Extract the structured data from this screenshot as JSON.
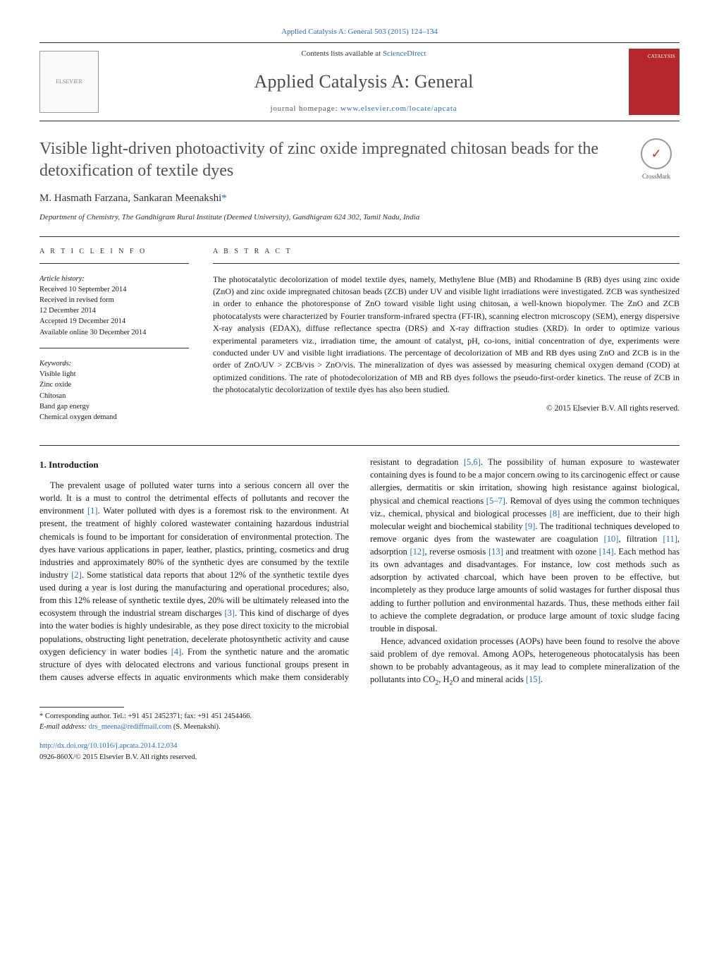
{
  "journal_ref": "Applied Catalysis A: General 503 (2015) 124–134",
  "header": {
    "contents_prefix": "Contents lists available at ",
    "contents_link": "ScienceDirect",
    "journal_title": "Applied Catalysis A: General",
    "homepage_prefix": "journal homepage: ",
    "homepage_link": "www.elsevier.com/locate/apcata",
    "elsevier_alt": "ELSEVIER",
    "cover_alt": "CATALYSIS"
  },
  "crossmark_label": "CrossMark",
  "title": "Visible light-driven photoactivity of zinc oxide impregnated chitosan beads for the detoxification of textile dyes",
  "authors_html": "M. Hasmath Farzana, Sankaran Meenakshi",
  "corr_marker": "*",
  "affiliation": "Department of Chemistry, The Gandhigram Rural Institute (Deemed University), Gandhigram 624 302, Tamil Nadu, India",
  "article_info": {
    "heading": "A R T I C L E   I N F O",
    "history_label": "Article history:",
    "history": [
      "Received 10 September 2014",
      "Received in revised form",
      "12 December 2014",
      "Accepted 19 December 2014",
      "Available online 30 December 2014"
    ],
    "keywords_label": "Keywords:",
    "keywords": [
      "Visible light",
      "Zinc oxide",
      "Chitosan",
      "Band gap energy",
      "Chemical oxygen demand"
    ]
  },
  "abstract": {
    "heading": "A B S T R A C T",
    "text": "The photocatalytic decolorization of model textile dyes, namely, Methylene Blue (MB) and Rhodamine B (RB) dyes using zinc oxide (ZnO) and zinc oxide impregnated chitosan beads (ZCB) under UV and visible light irradiations were investigated. ZCB was synthesized in order to enhance the photoresponse of ZnO toward visible light using chitosan, a well-known biopolymer. The ZnO and ZCB photocatalysts were characterized by Fourier transform-infrared spectra (FT-IR), scanning electron microscopy (SEM), energy dispersive X-ray analysis (EDAX), diffuse reflectance spectra (DRS) and X-ray diffraction studies (XRD). In order to optimize various experimental parameters viz., irradiation time, the amount of catalyst, pH, co-ions, initial concentration of dye, experiments were conducted under UV and visible light irradiations. The percentage of decolorization of MB and RB dyes using ZnO and ZCB is in the order of ZnO/UV > ZCB/vis > ZnO/vis. The mineralization of dyes was assessed by measuring chemical oxygen demand (COD) at optimized conditions. The rate of photodecolorization of MB and RB dyes follows the pseudo-first-order kinetics. The reuse of ZCB in the photocatalytic decolorization of textile dyes has also been studied.",
    "copyright": "© 2015 Elsevier B.V. All rights reserved."
  },
  "body": {
    "section_number": "1.",
    "section_title": "Introduction",
    "p1a": "The prevalent usage of polluted water turns into a serious concern all over the world. It is a must to control the detrimental effects of pollutants and recover the environment ",
    "c1": "[1]",
    "p1b": ". Water polluted with dyes is a foremost risk to the environment. At present, the treatment of highly colored wastewater containing hazardous industrial chemicals is found to be important for consideration of environmental protection. The dyes have various applications in paper, leather, plastics, printing, cosmetics and drug industries and approximately 80% of the synthetic dyes are consumed by the textile industry ",
    "c2": "[2]",
    "p1c": ". Some statistical data reports that about 12% of the synthetic textile dyes used during a year is lost during the manufacturing and operational procedures; also, from this 12% release of synthetic textile dyes, 20% will be ultimately released into the ecosystem through the industrial stream discharges ",
    "c3": "[3]",
    "p1d": ". This kind of discharge of dyes into the water bodies is highly undesirable, as they pose direct toxicity to the microbial populations, obstructing light penetration, decelerate photosynthetic activity and cause oxygen deficiency in water bodies ",
    "c4": "[4]",
    "p1e": ". From the synthetic nature and the aromatic structure of dyes with delocated electrons and various functional groups present in them causes adverse effects in aquatic environments which make them considerably resistant to degradation ",
    "c56": "[5,6]",
    "p1f": ". The possibility of human exposure to wastewater containing dyes is found to be a major concern owing to its carcinogenic effect or cause allergies, dermatitis or skin irritation, showing high resistance against biological, physical and chemical reactions ",
    "c57": "[5–7]",
    "p1g": ". Removal of dyes using the common techniques viz., chemical, physical and biological processes ",
    "c8": "[8]",
    "p1h": " are inefficient, due to their high molecular weight and biochemical stability ",
    "c9": "[9]",
    "p1i": ". The traditional techniques developed to remove organic dyes from the wastewater are coagulation ",
    "c10": "[10]",
    "p1j": ", filtration ",
    "c11": "[11]",
    "p1k": ", adsorption ",
    "c12": "[12]",
    "p1l": ", reverse osmosis ",
    "c13": "[13]",
    "p1m": " and treatment with ozone ",
    "c14": "[14]",
    "p1n": ". Each method has its own advantages and disadvantages. For instance, low cost methods such as adsorption by activated charcoal, which have been proven to be effective, but incompletely as they produce large amounts of solid wastages for further disposal thus adding to further pollution and environmental hazards. Thus, these methods either fail to achieve the complete degradation, or produce large amount of toxic sludge facing trouble in disposal.",
    "p2a": "Hence, advanced oxidation processes (AOPs) have been found to resolve the above said problem of dye removal. Among AOPs, heterogeneous photocatalysis has been shown to be probably advantageous, as it may lead to complete mineralization of the pollutants into CO",
    "p2_sub1": "2",
    "p2b": ", H",
    "p2_sub2": "2",
    "p2c": "O and mineral acids ",
    "c15": "[15]",
    "p2d": "."
  },
  "footnote": {
    "corr_label": "* Corresponding author. Tel.: +91 451 2452371; fax: +91 451 2454466.",
    "email_label": "E-mail address: ",
    "email": "drs_meena@rediffmail.com",
    "email_suffix": " (S. Meenakshi)."
  },
  "doi": {
    "link": "http://dx.doi.org/10.1016/j.apcata.2014.12.034",
    "issn_line": "0926-860X/© 2015 Elsevier B.V. All rights reserved."
  }
}
